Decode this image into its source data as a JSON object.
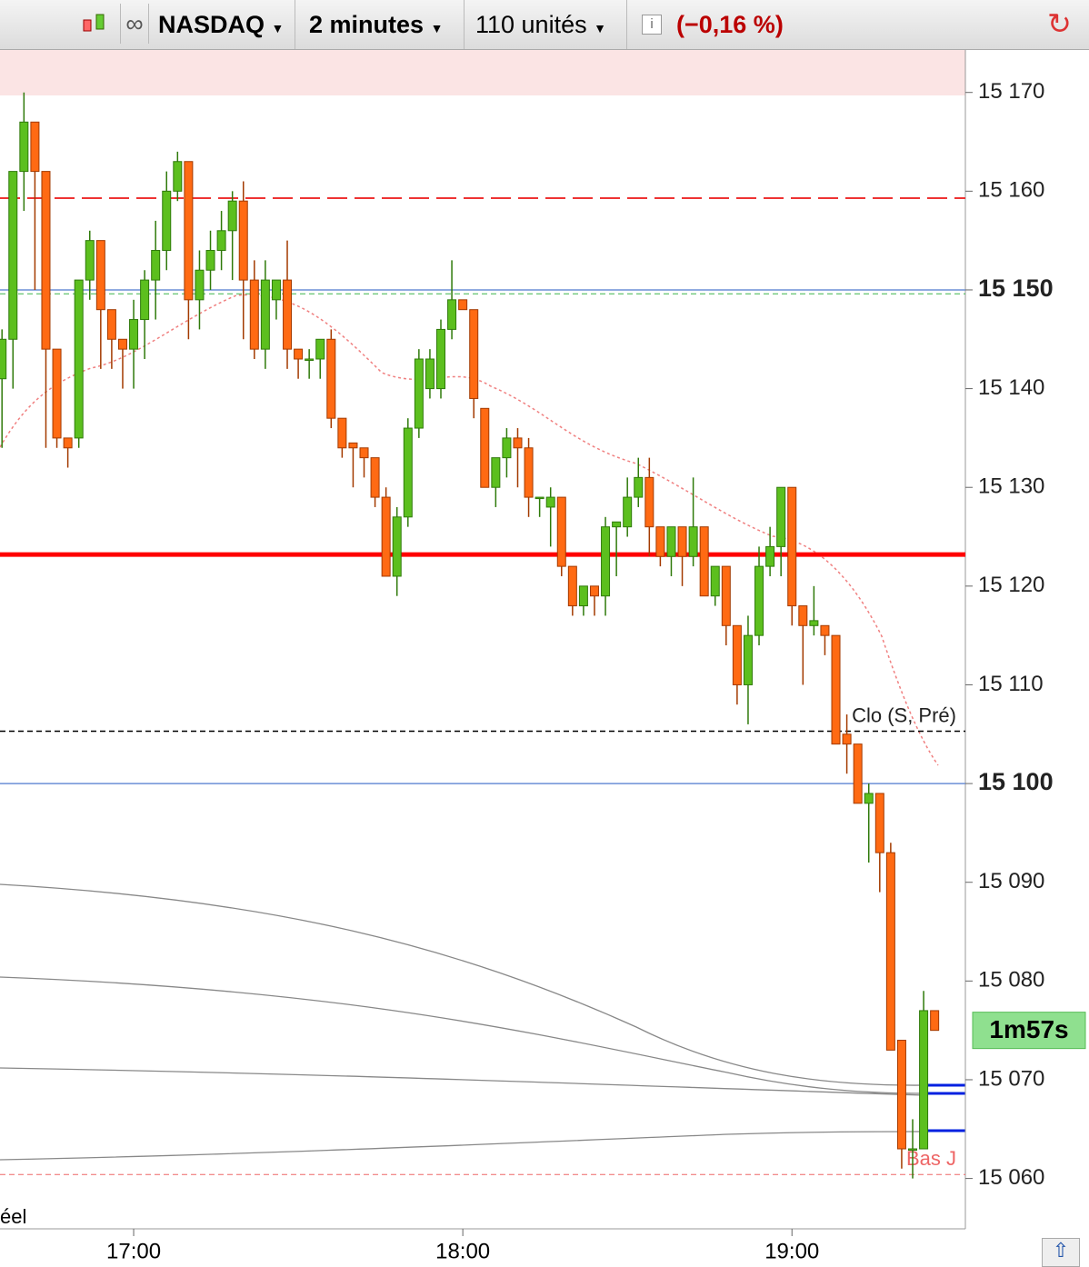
{
  "toolbar": {
    "instrument": "NASDAQ",
    "interval": "2 minutes",
    "units": "110 unités",
    "change": "(−0,16 %)"
  },
  "chart_data": {
    "type": "candlestick",
    "categories": [
      null,
      null,
      null,
      null,
      null,
      null,
      null,
      null,
      null,
      null,
      null,
      null,
      "17:00",
      null,
      null,
      null,
      null,
      null,
      null,
      null,
      null,
      null,
      null,
      null,
      null,
      null,
      null,
      null,
      null,
      null,
      null,
      null,
      null,
      null,
      null,
      null,
      null,
      null,
      null,
      null,
      null,
      null,
      "18:00",
      null,
      null,
      null,
      null,
      null,
      null,
      null,
      null,
      null,
      null,
      null,
      null,
      null,
      null,
      null,
      null,
      null,
      null,
      null,
      null,
      null,
      null,
      null,
      null,
      null,
      null,
      null,
      null,
      null,
      "19:00",
      null,
      null,
      null,
      null,
      null,
      null,
      null,
      null,
      null,
      null,
      null,
      null,
      null
    ],
    "open": [
      15141,
      15145,
      15162,
      15167,
      15162,
      15144,
      15135,
      15135,
      15151,
      15155,
      15148,
      15145,
      15144,
      15147,
      15151,
      15154,
      15160,
      15163,
      15149,
      15152,
      15154,
      15156,
      15159,
      15151,
      15144,
      15149,
      15151,
      15144,
      15143,
      15143,
      15145,
      15137,
      15134.5,
      15134,
      15133,
      15129,
      15121,
      15127,
      15136,
      15140,
      15140,
      15146,
      15149,
      15148,
      15138,
      15130,
      15133,
      15135,
      15134,
      15129,
      15128,
      15129,
      15122,
      15118,
      15120,
      15119,
      15126,
      15126,
      15129,
      15131,
      15126,
      15123,
      15126,
      15123,
      15126,
      15119,
      15122,
      15116,
      15110,
      15115,
      15122,
      15124,
      15130,
      15118,
      15116,
      15116,
      15115,
      15105,
      15104,
      15098,
      15099,
      15093,
      15074,
      15063,
      15063,
      15077
    ],
    "high": [
      15146,
      15162,
      15170,
      15167,
      15162,
      15144,
      15135,
      15151,
      15156,
      15155,
      15148,
      15145,
      15149,
      15152,
      15157,
      15162,
      15164,
      15163,
      15154,
      15156,
      15158,
      15160,
      15161,
      15153,
      15153,
      15151,
      15155,
      15144,
      15144,
      15145,
      15146,
      15137,
      15134.5,
      15134,
      15133,
      15130,
      15128,
      15137,
      15144,
      15144,
      15147,
      15153,
      15149,
      15148,
      15138,
      15133,
      15136,
      15136,
      15135,
      15129,
      15130,
      15129,
      15122,
      15120,
      15120,
      15127,
      15126.5,
      15131,
      15133,
      15133,
      15126,
      15126,
      15126,
      15131,
      15126,
      15122,
      15122,
      15116,
      15117,
      15124,
      15126,
      15130,
      15130,
      15118,
      15120,
      15116,
      15115,
      15107,
      15104,
      15100,
      15099,
      15094,
      15074,
      15066,
      15079,
      15077
    ],
    "low": [
      15134,
      15140,
      15158,
      15150,
      15134,
      15134,
      15132,
      15134,
      15149,
      15142,
      15142,
      15140,
      15140,
      15143,
      15147,
      15152,
      15159,
      15145,
      15146,
      15150,
      15152,
      15151,
      15145,
      15143,
      15142,
      15147,
      15142,
      15141,
      15141,
      15141,
      15136,
      15133,
      15130,
      15131,
      15128,
      15121,
      15119,
      15126,
      15135,
      15139,
      15139,
      15145,
      15148,
      15137,
      15130,
      15128,
      15131,
      15130,
      15127,
      15127,
      15124,
      15121,
      15117,
      15117,
      15117,
      15117,
      15121,
      15125,
      15128,
      15123,
      15122,
      15121,
      15120,
      15122,
      15119,
      15118,
      15114,
      15108,
      15106,
      15114,
      15121,
      15121,
      15116,
      15110,
      15115,
      15113,
      15104,
      15101,
      15098,
      15092,
      15089,
      15073,
      15061,
      15060,
      15063,
      15075
    ],
    "close": [
      15145,
      15162,
      15167,
      15162,
      15144,
      15135,
      15134,
      15151,
      15155,
      15148,
      15145,
      15144,
      15147,
      15151,
      15154,
      15160,
      15163,
      15149,
      15152,
      15154,
      15156,
      15159,
      15151,
      15144,
      15151,
      15151,
      15144,
      15143,
      15143,
      15145,
      15137,
      15134,
      15134,
      15133,
      15129,
      15121,
      15127,
      15136,
      15143,
      15143,
      15146,
      15149,
      15148,
      15139,
      15130,
      15133,
      15135,
      15134,
      15129,
      15129,
      15129,
      15122,
      15118,
      15120,
      15119,
      15126,
      15126.5,
      15129,
      15131,
      15126,
      15123,
      15126,
      15123,
      15126,
      15119,
      15122,
      15116,
      15110,
      15115,
      15122,
      15124,
      15130,
      15118,
      15116,
      15116.5,
      15115,
      15104,
      15104,
      15098,
      15099,
      15093,
      15073,
      15063,
      15063,
      15077,
      15075
    ],
    "up_color": "#5cbf1e",
    "down_color": "#ff6a13",
    "ylim": [
      15054.9,
      15174.3
    ],
    "yticks": [
      {
        "value": 15060,
        "label": "15 060"
      },
      {
        "value": 15070,
        "label": "15 070"
      },
      {
        "value": 15080,
        "label": "15 080"
      },
      {
        "value": 15090,
        "label": "15 090"
      },
      {
        "value": 15100,
        "label": "15 100",
        "emphasis": true
      },
      {
        "value": 15110,
        "label": "15 110"
      },
      {
        "value": 15120,
        "label": "15 120"
      },
      {
        "value": 15130,
        "label": "15 130"
      },
      {
        "value": 15140,
        "label": "15 140"
      },
      {
        "value": 15150,
        "label": "15 150",
        "emphasis": true
      },
      {
        "value": 15160,
        "label": "15 160"
      },
      {
        "value": 15170,
        "label": "15 170"
      }
    ],
    "levels": [
      {
        "value": 15159.3,
        "color": "#e33",
        "style": "dashed",
        "width": 2
      },
      {
        "value": 15150,
        "color": "#6b8fd6",
        "style": "solid",
        "width": 1.5
      },
      {
        "value": 15149.6,
        "color": "#3bb34a",
        "style": "dashed",
        "width": 1
      },
      {
        "value": 15123.2,
        "color": "#ff0000",
        "style": "solid",
        "width": 5
      },
      {
        "value": 15105.3,
        "color": "#000",
        "style": "dashed",
        "width": 1.5,
        "label": "Clo (S, Pré)"
      },
      {
        "value": 15100,
        "color": "#6b8fd6",
        "style": "solid",
        "width": 1.5
      },
      {
        "value": 15060.4,
        "color": "#e66",
        "style": "dashed",
        "width": 1,
        "label": "Bas J"
      }
    ],
    "countdown": "1m57s",
    "corner_note": "éel"
  }
}
